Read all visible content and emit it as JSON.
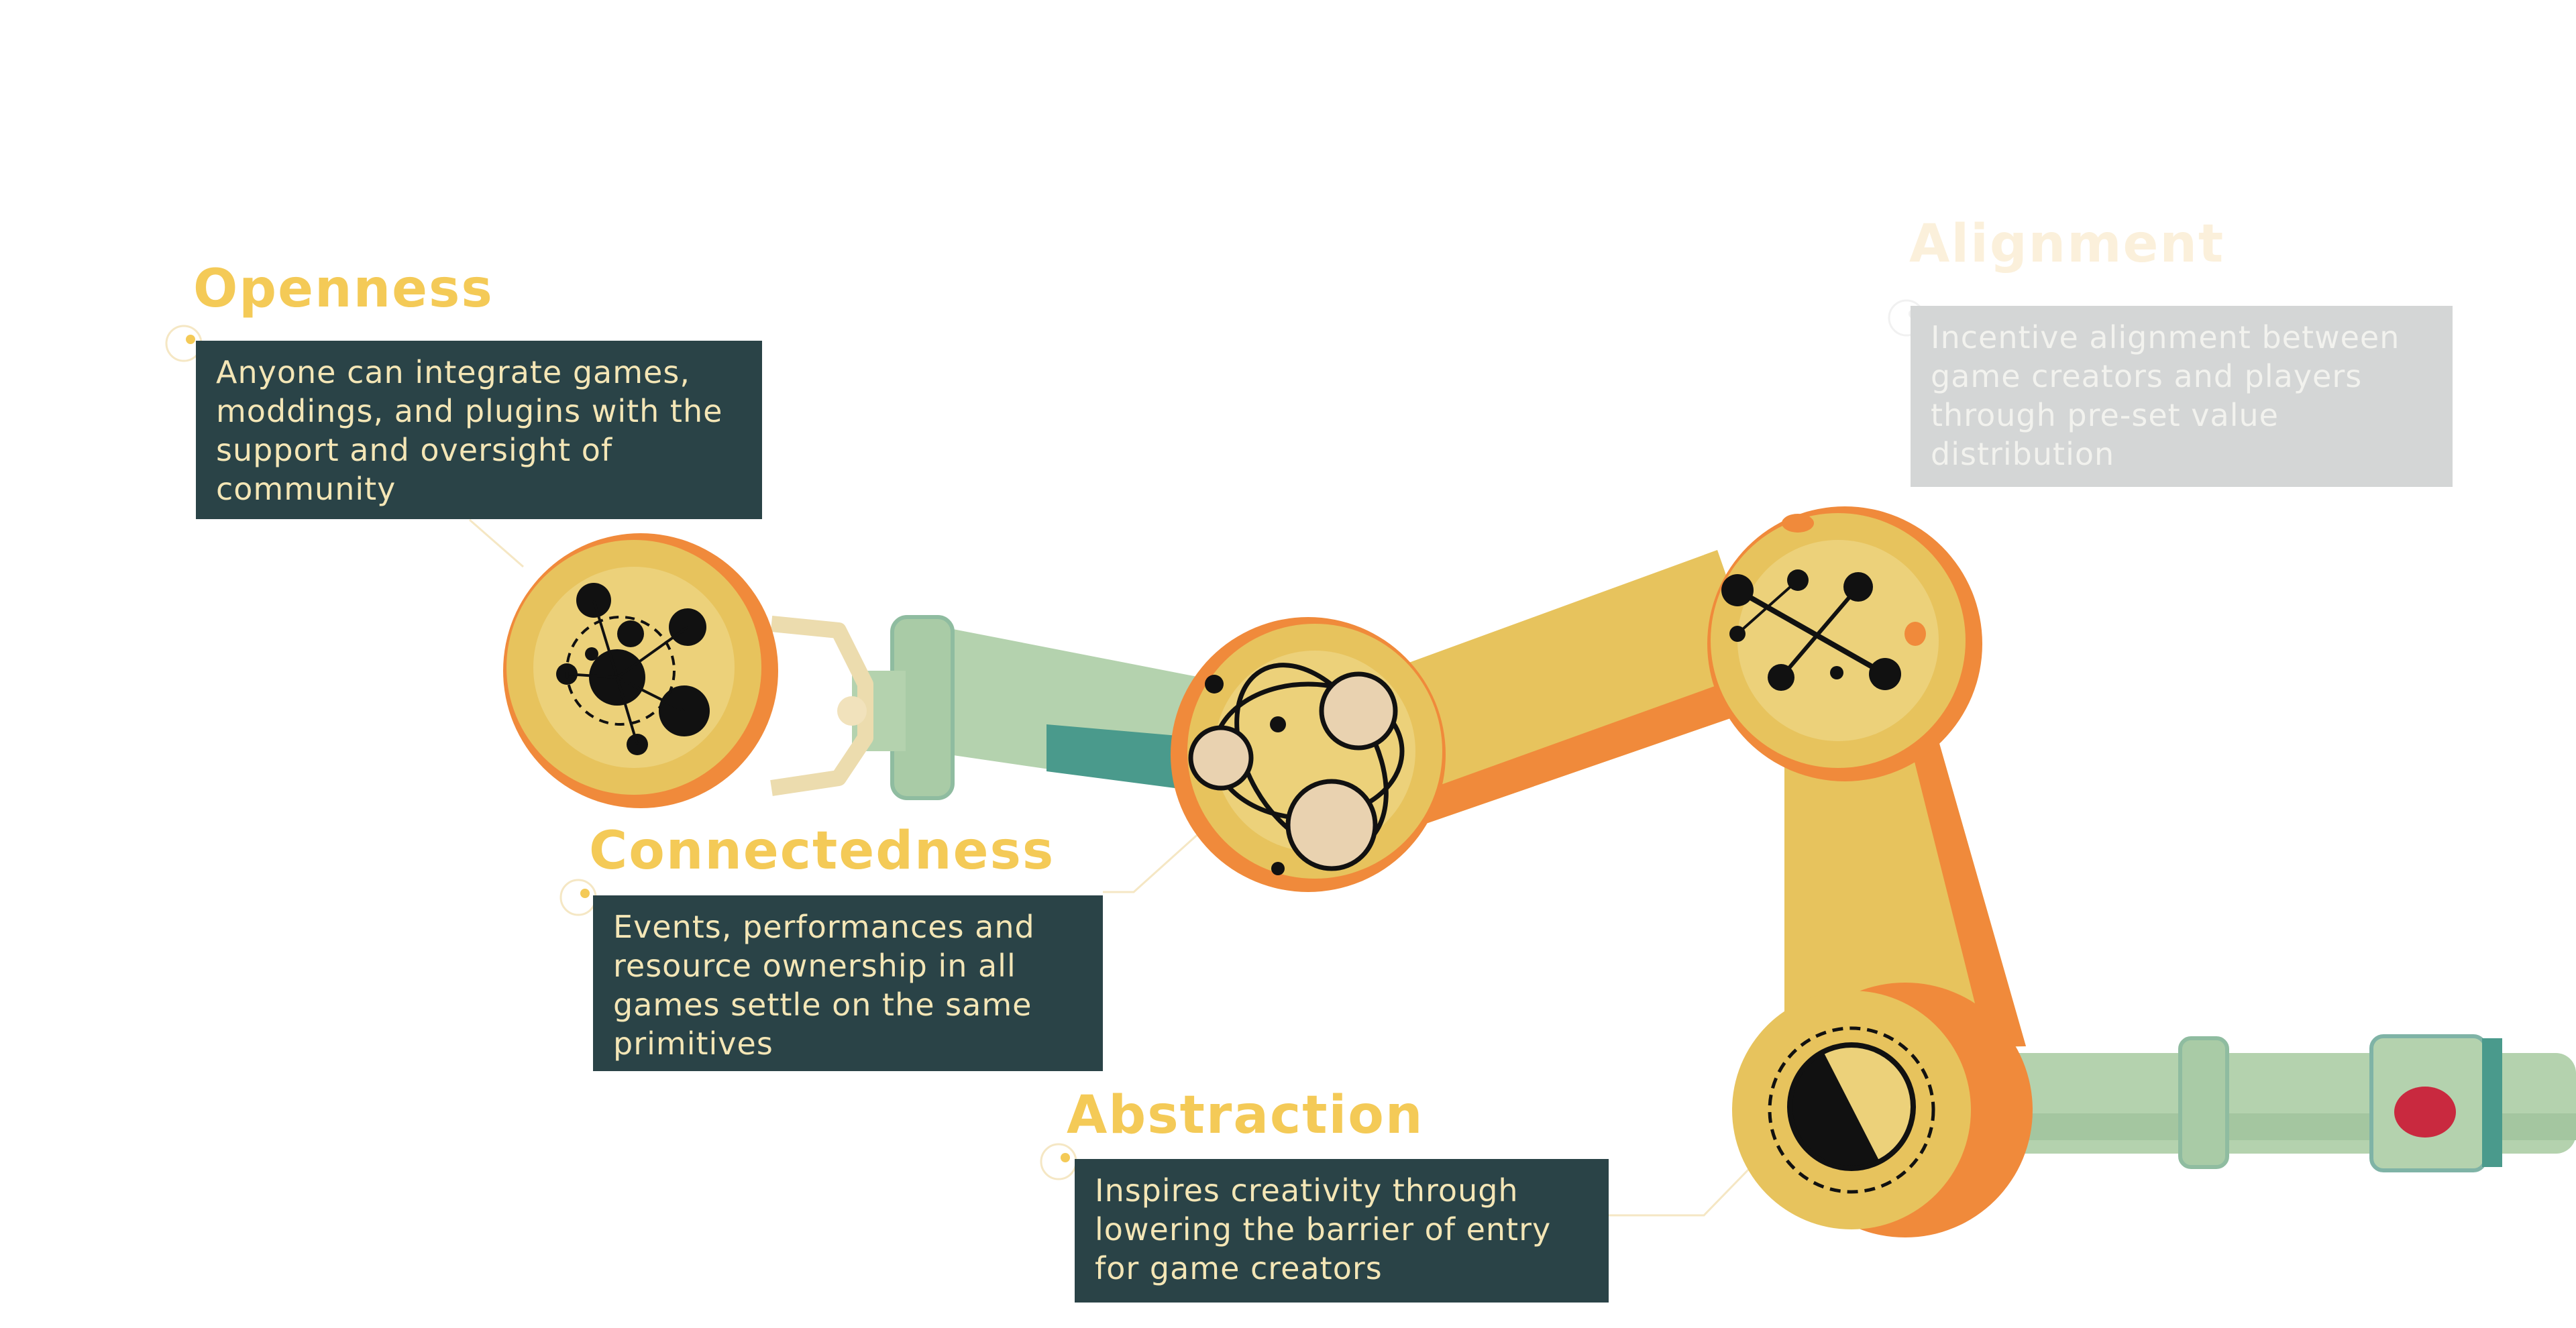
{
  "palette": {
    "heading_yellow": "#f4ca57",
    "box_dark_teal": "#2a4347",
    "box_text_cream": "#f4e6b6",
    "arm_yellow": "#e7c35d",
    "arm_orange": "#f08a3b",
    "pipe_mint": "#b4d2ae",
    "pipe_teal": "#4a9a8c",
    "faded_box": "#d4d6d6",
    "valve_red": "#c9293f"
  },
  "principles": [
    {
      "title": "Openness",
      "description": "Anyone can integrate games, moddings, and plugins with the support and oversight of community",
      "joint_icon": "molecule-network-icon",
      "state": "active"
    },
    {
      "title": "Alignment",
      "description": "Incentive alignment between game creators and players through pre-set value distribution",
      "joint_icon": "linked-nodes-icon",
      "state": "faded"
    },
    {
      "title": "Connectedness",
      "description": "Events, performances and resource ownership in all games settle on the same primitives",
      "joint_icon": "orbit-circles-icon",
      "state": "active"
    },
    {
      "title": "Abstraction",
      "description": "Inspires creativity through lowering the barrier of entry for game creators",
      "joint_icon": "half-moon-dial-icon",
      "state": "active"
    }
  ]
}
